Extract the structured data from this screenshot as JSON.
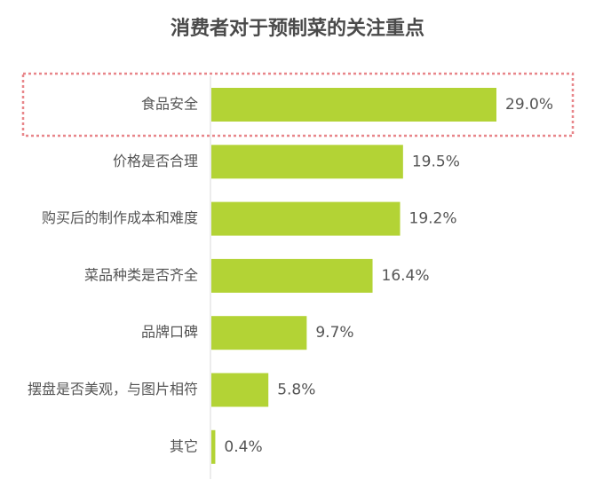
{
  "chart_data": {
    "type": "bar",
    "orientation": "horizontal",
    "title": "消费者对于预制菜的关注重点",
    "xlabel": "",
    "ylabel": "",
    "categories": [
      "食品安全",
      "价格是否合理",
      "购买后的制作成本和难度",
      "菜品种类是否齐全",
      "品牌口碑",
      "摆盘是否美观，与图片相符",
      "其它"
    ],
    "values": [
      29.0,
      19.5,
      19.2,
      16.4,
      9.7,
      5.8,
      0.4
    ],
    "value_labels": [
      "29.0%",
      "19.5%",
      "19.2%",
      "16.4%",
      "9.7%",
      "5.8%",
      "0.4%"
    ],
    "xlim": [
      0,
      30
    ],
    "grid": false,
    "bar_color": "#b3d335",
    "axis_color": "#d9d9d9",
    "highlight": {
      "category": "食品安全",
      "style": "dashed-box",
      "color": "#e8868a"
    }
  }
}
